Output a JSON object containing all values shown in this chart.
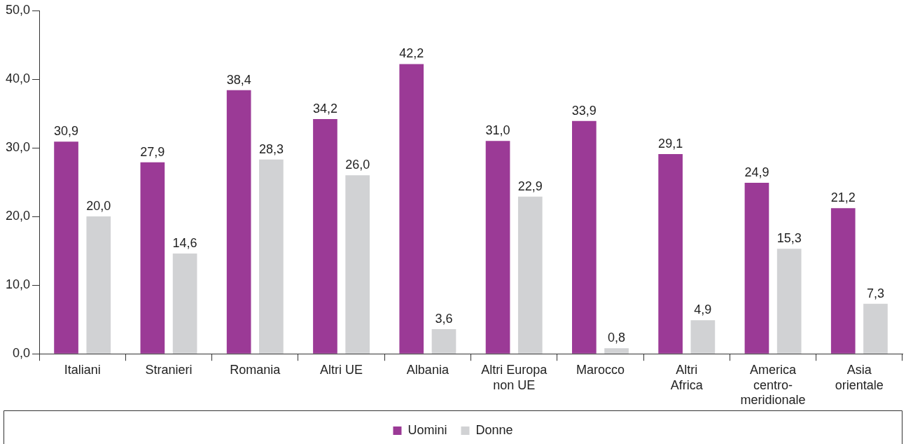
{
  "chart_data": {
    "type": "bar",
    "categories": [
      "Italiani",
      "Stranieri",
      "Romania",
      "Altri UE",
      "Albania",
      "Altri Europa\nnon UE",
      "Marocco",
      "Altri\nAfrica",
      "America\ncentro-\nmeridionale",
      "Asia\norientale"
    ],
    "series": [
      {
        "name": "Uomini",
        "color": "#9b3a96",
        "values": [
          30.9,
          27.9,
          38.4,
          34.2,
          42.2,
          31.0,
          33.9,
          29.1,
          24.9,
          21.2
        ],
        "value_labels": [
          "30,9",
          "27,9",
          "38,4",
          "34,2",
          "42,2",
          "31,0",
          "33,9",
          "29,1",
          "24,9",
          "21,2"
        ]
      },
      {
        "name": "Donne",
        "color": "#d1d2d4",
        "values": [
          20.0,
          14.6,
          28.3,
          26.0,
          3.6,
          22.9,
          0.8,
          4.9,
          15.3,
          7.3
        ],
        "value_labels": [
          "20,0",
          "14,6",
          "28,3",
          "26,0",
          "3,6",
          "22,9",
          "0,8",
          "4,9",
          "15,3",
          "7,3"
        ]
      }
    ],
    "ylim": [
      0,
      50
    ],
    "yticks": [
      {
        "value": 0,
        "label": "0,0"
      },
      {
        "value": 10,
        "label": "10,0"
      },
      {
        "value": 20,
        "label": "20,0"
      },
      {
        "value": 30,
        "label": "30,0"
      },
      {
        "value": 40,
        "label": "40,0"
      },
      {
        "value": 50,
        "label": "50,0"
      }
    ],
    "grid": false,
    "legend": "bottom"
  }
}
